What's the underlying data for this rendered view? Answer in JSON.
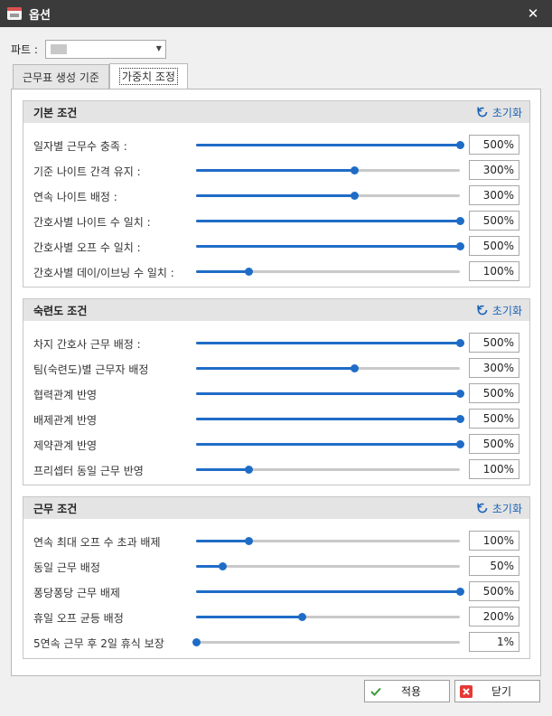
{
  "window": {
    "title": "옵션"
  },
  "part": {
    "label": "파트 :"
  },
  "tabs": [
    {
      "label": "근무표 생성 기준"
    },
    {
      "label": "가중치 조정"
    }
  ],
  "groups": [
    {
      "title": "기본 조건",
      "reset_label": "초기화",
      "rows": [
        {
          "label": "일자별 근무수 충족 :",
          "value": "500%",
          "level": 1.0
        },
        {
          "label": "기준 나이트 간격 유지 :",
          "value": "300%",
          "level": 0.6
        },
        {
          "label": "연속 나이트 배정 :",
          "value": "300%",
          "level": 0.6
        },
        {
          "label": "간호사별 나이트 수 일치 :",
          "value": "500%",
          "level": 1.0
        },
        {
          "label": "간호사별 오프 수 일치 :",
          "value": "500%",
          "level": 1.0
        },
        {
          "label": "간호사별 데이/이브닝 수 일치 :",
          "value": "100%",
          "level": 0.2
        }
      ]
    },
    {
      "title": "숙련도 조건",
      "reset_label": "초기화",
      "rows": [
        {
          "label": "차지 간호사 근무 배정 :",
          "value": "500%",
          "level": 1.0
        },
        {
          "label": "팀(숙련도)별 근무자 배정",
          "value": "300%",
          "level": 0.6
        },
        {
          "label": "협력관계 반영",
          "value": "500%",
          "level": 1.0
        },
        {
          "label": "배제관계 반영",
          "value": "500%",
          "level": 1.0
        },
        {
          "label": "제약관계 반영",
          "value": "500%",
          "level": 1.0
        },
        {
          "label": "프리셉터 동일 근무 반영",
          "value": "100%",
          "level": 0.2
        }
      ]
    },
    {
      "title": "근무 조건",
      "reset_label": "초기화",
      "rows": [
        {
          "label": "연속 최대 오프 수 초과 배제",
          "value": "100%",
          "level": 0.2
        },
        {
          "label": "동일 근무 배정",
          "value": "50%",
          "level": 0.1
        },
        {
          "label": "퐁당퐁당 근무 배제",
          "value": "500%",
          "level": 1.0
        },
        {
          "label": "휴일 오프 균등 배정",
          "value": "200%",
          "level": 0.4
        },
        {
          "label": "5연속 근무 후 2일 휴식 보장",
          "value": "1%",
          "level": 0.0
        }
      ]
    }
  ],
  "buttons": {
    "apply_label": "적용",
    "close_label": "닫기"
  },
  "colors": {
    "accent": "#1f6cc7",
    "titlebar": "#3b3b3b",
    "reset_link": "#1b63b8",
    "close_icon": "#e53935",
    "check_icon": "#3c9a3c"
  },
  "icons": {
    "reset": "refresh-icon",
    "apply": "check-icon",
    "close": "close-icon"
  }
}
